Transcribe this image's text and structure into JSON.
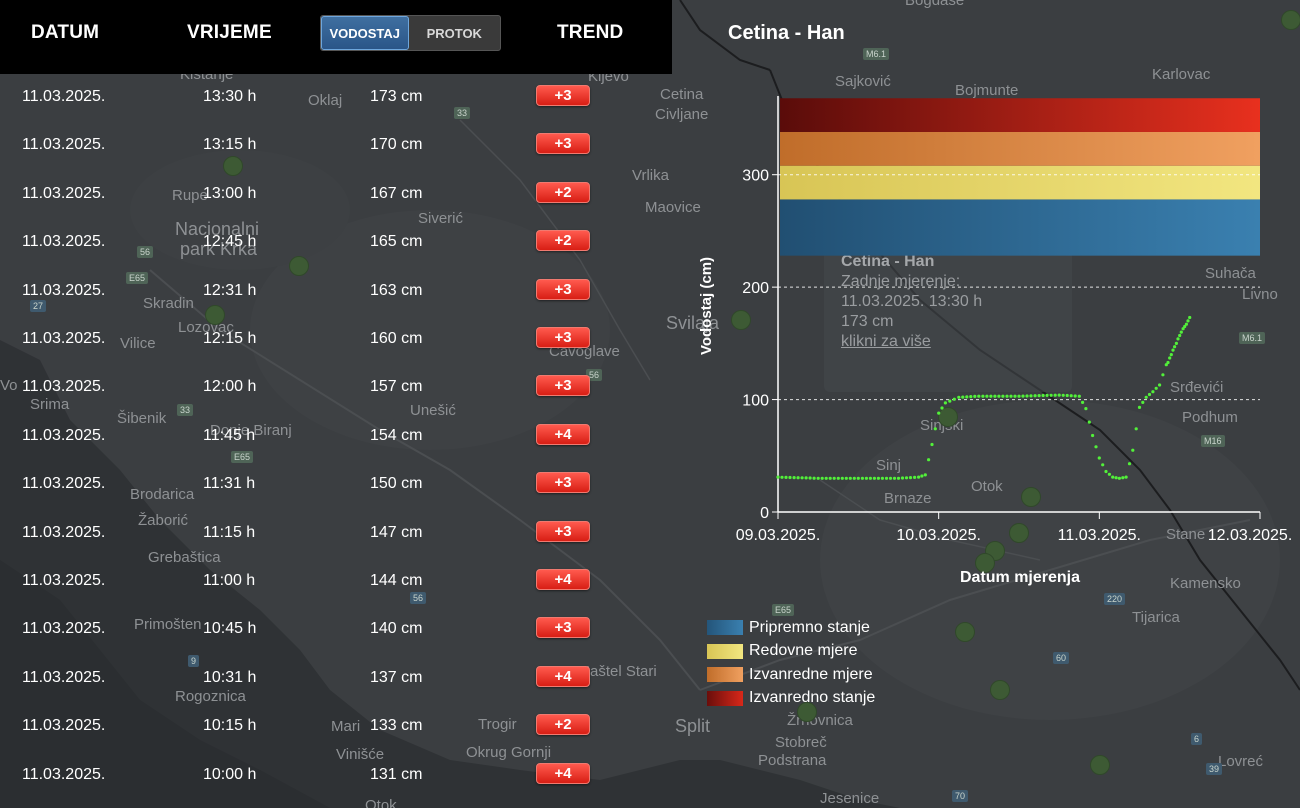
{
  "header": {
    "col_date": "DATUM",
    "col_time": "VRIJEME",
    "col_trend": "TREND",
    "toggle": {
      "active": "VODOSTAJ",
      "inactive": "PROTOK"
    }
  },
  "measurements": [
    {
      "date": "11.03.2025.",
      "time": "13:30 h",
      "value": "173 cm",
      "trend": "+3"
    },
    {
      "date": "11.03.2025.",
      "time": "13:15 h",
      "value": "170 cm",
      "trend": "+3"
    },
    {
      "date": "11.03.2025.",
      "time": "13:00 h",
      "value": "167 cm",
      "trend": "+2"
    },
    {
      "date": "11.03.2025.",
      "time": "12:45 h",
      "value": "165 cm",
      "trend": "+2"
    },
    {
      "date": "11.03.2025.",
      "time": "12:31 h",
      "value": "163 cm",
      "trend": "+3"
    },
    {
      "date": "11.03.2025.",
      "time": "12:15 h",
      "value": "160 cm",
      "trend": "+3"
    },
    {
      "date": "11.03.2025.",
      "time": "12:00 h",
      "value": "157 cm",
      "trend": "+3"
    },
    {
      "date": "11.03.2025.",
      "time": "11:45 h",
      "value": "154 cm",
      "trend": "+4"
    },
    {
      "date": "11.03.2025.",
      "time": "11:31 h",
      "value": "150 cm",
      "trend": "+3"
    },
    {
      "date": "11.03.2025.",
      "time": "11:15 h",
      "value": "147 cm",
      "trend": "+3"
    },
    {
      "date": "11.03.2025.",
      "time": "11:00 h",
      "value": "144 cm",
      "trend": "+4"
    },
    {
      "date": "11.03.2025.",
      "time": "10:45 h",
      "value": "140 cm",
      "trend": "+3"
    },
    {
      "date": "11.03.2025.",
      "time": "10:31 h",
      "value": "137 cm",
      "trend": "+4"
    },
    {
      "date": "11.03.2025.",
      "time": "10:15 h",
      "value": "133 cm",
      "trend": "+2"
    },
    {
      "date": "11.03.2025.",
      "time": "10:00 h",
      "value": "131 cm",
      "trend": "+4"
    }
  ],
  "station": {
    "title": "Cetina - Han"
  },
  "tooltip": {
    "title": "Cetina - Han",
    "line1": "Zadnje mjerenje:",
    "line2": "11.03.2025. 13:30 h",
    "line3": "173 cm",
    "link": "klikni za više"
  },
  "chart_data": {
    "type": "scatter",
    "ylabel": "Vodostaj (cm)",
    "xlabel": "Datum mjerenja",
    "ylim": [
      0,
      370
    ],
    "y_ticks": [
      0,
      100,
      200,
      300
    ],
    "x_ticks": [
      "09.03.2025.",
      "10.03.2025.",
      "11.03.2025.",
      "12.03.2025."
    ],
    "grid": true,
    "threshold_bands": [
      {
        "name": "Pripremno stanje",
        "from": 228,
        "to": 278,
        "color": "#2e6d99"
      },
      {
        "name": "Redovne mjere",
        "from": 278,
        "to": 308,
        "color": "#e6d86a"
      },
      {
        "name": "Izvanredne mjere",
        "from": 308,
        "to": 338,
        "color": "#e8964a"
      },
      {
        "name": "Izvanredno stanje",
        "from": 338,
        "to": 368,
        "color": "#b8201a"
      }
    ],
    "series": [
      {
        "color": "#52f03a",
        "points": [
          [
            "09.03.2025. 00:00",
            31
          ],
          [
            "09.03.2025. 06:00",
            30
          ],
          [
            "09.03.2025. 12:00",
            30
          ],
          [
            "09.03.2025. 18:00",
            30
          ],
          [
            "09.03.2025. 21:00",
            31
          ],
          [
            "09.03.2025. 22:00",
            33
          ],
          [
            "09.03.2025. 23:00",
            60
          ],
          [
            "10.03.2025. 00:00",
            88
          ],
          [
            "10.03.2025. 01:00",
            97
          ],
          [
            "10.03.2025. 03:00",
            102
          ],
          [
            "10.03.2025. 06:00",
            103
          ],
          [
            "10.03.2025. 12:00",
            103
          ],
          [
            "10.03.2025. 18:00",
            104
          ],
          [
            "10.03.2025. 21:00",
            103
          ],
          [
            "10.03.2025. 22:00",
            92
          ],
          [
            "10.03.2025. 23:00",
            68
          ],
          [
            "11.03.2025. 00:00",
            48
          ],
          [
            "11.03.2025. 01:00",
            36
          ],
          [
            "11.03.2025. 02:00",
            31
          ],
          [
            "11.03.2025. 03:00",
            30
          ],
          [
            "11.03.2025. 04:00",
            31
          ],
          [
            "11.03.2025. 05:00",
            55
          ],
          [
            "11.03.2025. 06:00",
            93
          ],
          [
            "11.03.2025. 07:00",
            102
          ],
          [
            "11.03.2025. 08:00",
            107
          ],
          [
            "11.03.2025. 09:00",
            113
          ],
          [
            "11.03.2025. 10:00",
            131
          ],
          [
            "11.03.2025. 10:15",
            133
          ],
          [
            "11.03.2025. 10:31",
            137
          ],
          [
            "11.03.2025. 10:45",
            140
          ],
          [
            "11.03.2025. 11:00",
            144
          ],
          [
            "11.03.2025. 11:15",
            147
          ],
          [
            "11.03.2025. 11:31",
            150
          ],
          [
            "11.03.2025. 11:45",
            154
          ],
          [
            "11.03.2025. 12:00",
            157
          ],
          [
            "11.03.2025. 12:15",
            160
          ],
          [
            "11.03.2025. 12:31",
            163
          ],
          [
            "11.03.2025. 12:45",
            165
          ],
          [
            "11.03.2025. 13:00",
            167
          ],
          [
            "11.03.2025. 13:15",
            170
          ],
          [
            "11.03.2025. 13:30",
            173
          ]
        ]
      }
    ],
    "legend": [
      {
        "name": "Pripremno stanje",
        "color": "#2e6d99"
      },
      {
        "name": "Redovne mjere",
        "color": "#e6d86a"
      },
      {
        "name": "Izvanredne mjere",
        "color": "#e8964a"
      },
      {
        "name": "Izvanredno stanje",
        "color": "#b8201a"
      }
    ]
  },
  "map": {
    "labels": [
      "Bogdaše",
      "Kistanje",
      "Kijevo",
      "Oklaj",
      "Cetina",
      "Civljane",
      "Sajković",
      "Bojmunte",
      "Karlovac",
      "Vrlika",
      "Maovice",
      "Rupe",
      "Siverić",
      "Nacionalni park Krka",
      "Skradin",
      "Lozovac",
      "Vodice",
      "Srima",
      "Šibenik",
      "Donje Biranj",
      "Unešić",
      "Sinjski",
      "Sinj",
      "Otok",
      "Brnaze",
      "Brodarica",
      "Žaborić",
      "Grebaštica",
      "Primošten",
      "Rogoznica",
      "Marina",
      "Vinišće",
      "Trogir",
      "Okrug Gornji",
      "Kaštel Stari",
      "Split",
      "Žrnovnica",
      "Stobreč",
      "Podstrana",
      "Jesenice",
      "Suhača",
      "Livno",
      "Srđevići",
      "Podhum",
      "Kamensko",
      "Tijarica",
      "Lovreć",
      "Svilaja",
      "Čavoglave",
      "Vilice",
      "Otok",
      "Stane"
    ],
    "roads": [
      "M6.1",
      "33",
      "56",
      "E65",
      "27",
      "E65",
      "33",
      "E65",
      "56",
      "E65",
      "M16",
      "M6.1",
      "220",
      "60",
      "39",
      "70",
      "9",
      "6"
    ]
  }
}
